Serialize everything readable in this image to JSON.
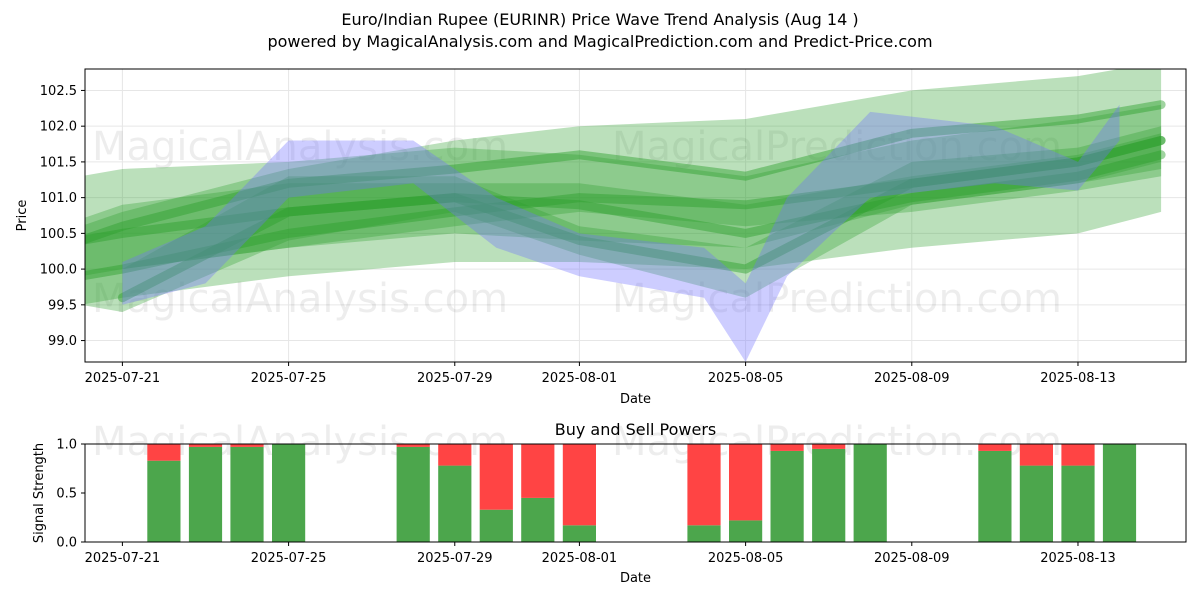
{
  "title": "Euro/Indian Rupee (EURINR) Price Wave Trend Analysis (Aug 14 )",
  "subtitle": "powered by MagicalAnalysis.com and MagicalPrediction.com and Predict-Price.com",
  "watermarks": [
    "MagicalAnalysis.com",
    "MagicalPrediction.com"
  ],
  "colors": {
    "green": "#2ca02c",
    "blue": "#7070ff",
    "buy": "#4ca64c",
    "sell": "#ff4444"
  },
  "chart_data": [
    {
      "type": "area",
      "xlabel": "Date",
      "ylabel": "Price",
      "xlim": [
        "2025-07-20",
        "2025-08-15"
      ],
      "ylim": [
        98.7,
        102.8
      ],
      "x_ticks": [
        "2025-07-21",
        "2025-07-25",
        "2025-07-29",
        "2025-08-01",
        "2025-08-05",
        "2025-08-09",
        "2025-08-13"
      ],
      "y_ticks": [
        99.0,
        99.5,
        100.0,
        100.5,
        101.0,
        101.5,
        102.0,
        102.5
      ],
      "grid": true,
      "series": [
        {
          "color": "green",
          "kind": "band",
          "x": [
            "2025-07-20",
            "2025-07-21",
            "2025-07-25",
            "2025-07-29",
            "2025-08-01",
            "2025-08-05",
            "2025-08-09",
            "2025-08-13",
            "2025-08-15"
          ],
          "upper": [
            101.3,
            101.4,
            101.5,
            101.7,
            101.6,
            101.3,
            101.8,
            102.1,
            102.3
          ],
          "lower": [
            99.5,
            99.6,
            99.9,
            100.1,
            100.1,
            100.0,
            100.3,
            100.5,
            100.8
          ]
        },
        {
          "color": "green",
          "kind": "band",
          "x": [
            "2025-07-20",
            "2025-07-21",
            "2025-07-25",
            "2025-07-29",
            "2025-08-01",
            "2025-08-05",
            "2025-08-09",
            "2025-08-13",
            "2025-08-15"
          ],
          "upper": [
            100.6,
            100.8,
            101.4,
            101.8,
            102.0,
            102.1,
            102.5,
            102.7,
            102.9
          ],
          "lower": [
            99.9,
            100.0,
            100.3,
            100.5,
            100.4,
            100.3,
            100.9,
            101.2,
            101.4
          ]
        },
        {
          "color": "green",
          "kind": "band",
          "x": [
            "2025-07-20",
            "2025-07-21",
            "2025-07-25",
            "2025-07-29",
            "2025-08-01",
            "2025-08-05",
            "2025-08-09",
            "2025-08-13",
            "2025-08-15"
          ],
          "upper": [
            100.7,
            100.9,
            101.2,
            101.2,
            101.2,
            100.9,
            101.3,
            101.6,
            101.9
          ],
          "lower": [
            99.9,
            100.0,
            100.3,
            100.6,
            100.8,
            100.6,
            100.8,
            101.1,
            101.3
          ]
        },
        {
          "color": "green",
          "kind": "band",
          "x": [
            "2025-07-20",
            "2025-07-21",
            "2025-07-25",
            "2025-07-29",
            "2025-08-01",
            "2025-08-05",
            "2025-08-09",
            "2025-08-13",
            "2025-08-15"
          ],
          "upper": [
            99.9,
            100.0,
            101.3,
            101.3,
            100.6,
            100.3,
            101.5,
            101.7,
            102.0
          ],
          "lower": [
            99.5,
            99.4,
            100.4,
            100.8,
            100.2,
            99.6,
            100.9,
            101.2,
            101.5
          ]
        },
        {
          "color": "green",
          "kind": "line",
          "x": [
            "2025-07-20",
            "2025-07-21",
            "2025-07-25",
            "2025-07-29",
            "2025-08-01",
            "2025-08-05",
            "2025-08-09",
            "2025-08-13",
            "2025-08-15"
          ],
          "values": [
            100.4,
            100.5,
            100.8,
            101.0,
            100.9,
            100.5,
            101.0,
            101.3,
            101.6
          ]
        },
        {
          "color": "green",
          "kind": "line",
          "x": [
            "2025-07-20",
            "2025-07-21",
            "2025-07-25",
            "2025-07-29",
            "2025-08-01",
            "2025-08-05",
            "2025-08-09",
            "2025-08-13",
            "2025-08-15"
          ],
          "values": [
            99.9,
            100.0,
            100.5,
            100.8,
            101.0,
            100.9,
            101.2,
            101.5,
            101.8
          ]
        },
        {
          "color": "green",
          "kind": "line",
          "x": [
            "2025-07-21",
            "2025-07-25",
            "2025-07-29",
            "2025-08-01",
            "2025-08-05",
            "2025-08-09",
            "2025-08-13",
            "2025-08-15"
          ],
          "values": [
            99.6,
            100.8,
            101.0,
            100.4,
            100.0,
            101.2,
            101.5,
            101.8
          ]
        },
        {
          "color": "green",
          "kind": "line",
          "x": [
            "2025-07-20",
            "2025-07-21",
            "2025-07-25",
            "2025-07-29",
            "2025-08-01",
            "2025-08-05",
            "2025-08-09",
            "2025-08-13",
            "2025-08-15"
          ],
          "values": [
            100.4,
            100.6,
            101.2,
            101.4,
            101.6,
            101.3,
            101.9,
            102.1,
            102.3
          ]
        },
        {
          "color": "blue",
          "kind": "band",
          "x": [
            "2025-07-21",
            "2025-07-23",
            "2025-07-25",
            "2025-07-28",
            "2025-07-30",
            "2025-08-01",
            "2025-08-04",
            "2025-08-05",
            "2025-08-06",
            "2025-08-08",
            "2025-08-11",
            "2025-08-13",
            "2025-08-14"
          ],
          "upper": [
            100.1,
            100.6,
            101.8,
            101.8,
            101.0,
            100.5,
            100.3,
            99.8,
            101.0,
            102.2,
            102.0,
            101.5,
            102.3
          ],
          "lower": [
            99.5,
            99.8,
            101.0,
            101.2,
            100.3,
            99.9,
            99.6,
            98.7,
            99.9,
            101.0,
            101.2,
            101.1,
            101.8
          ]
        }
      ]
    },
    {
      "type": "bar",
      "title": "Buy and Sell Powers",
      "xlabel": "Date",
      "ylabel": "Signal Strength",
      "ylim": [
        0,
        1.0
      ],
      "y_ticks": [
        0.0,
        0.5,
        1.0
      ],
      "x_ticks": [
        "2025-07-21",
        "2025-07-25",
        "2025-07-29",
        "2025-08-01",
        "2025-08-05",
        "2025-08-09",
        "2025-08-13"
      ],
      "categories": [
        "2025-07-22",
        "2025-07-23",
        "2025-07-24",
        "2025-07-25",
        "2025-07-28",
        "2025-07-29",
        "2025-07-30",
        "2025-07-31",
        "2025-08-01",
        "2025-08-04",
        "2025-08-05",
        "2025-08-06",
        "2025-08-07",
        "2025-08-08",
        "2025-08-11",
        "2025-08-12",
        "2025-08-13",
        "2025-08-14"
      ],
      "series": [
        {
          "name": "Buy",
          "values": [
            0.83,
            0.97,
            0.97,
            1.0,
            0.97,
            0.78,
            0.33,
            0.45,
            0.17,
            0.17,
            0.22,
            0.93,
            0.95,
            1.0,
            0.93,
            0.78,
            0.78,
            1.0
          ]
        },
        {
          "name": "Sell",
          "values": [
            0.17,
            0.03,
            0.03,
            0.0,
            0.03,
            0.22,
            0.67,
            0.55,
            0.83,
            0.83,
            0.78,
            0.07,
            0.05,
            0.0,
            0.07,
            0.22,
            0.22,
            0.0
          ]
        }
      ]
    }
  ]
}
